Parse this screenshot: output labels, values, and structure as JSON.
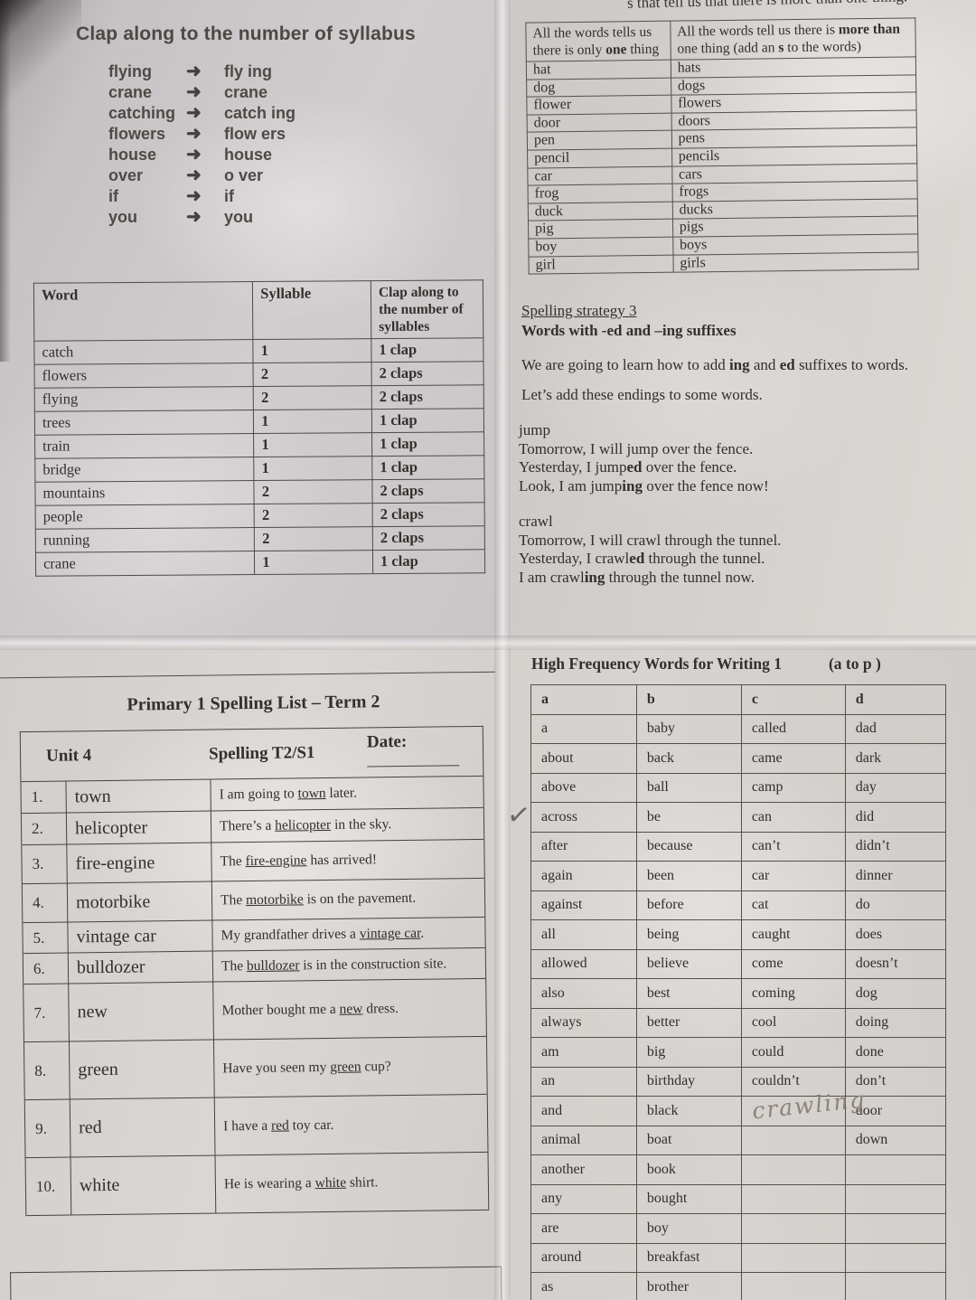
{
  "colors": {
    "ink": "#332f2b",
    "paper": "#d3d0cd",
    "pencil": "#8b8379"
  },
  "clap": {
    "title": "Clap along to the number of syllabus",
    "arrow": "➜",
    "pairs": [
      {
        "word": "flying",
        "split": "fly ing"
      },
      {
        "word": "crane",
        "split": "crane"
      },
      {
        "word": "catching",
        "split": "catch ing"
      },
      {
        "word": "flowers",
        "split": "flow ers"
      },
      {
        "word": "house",
        "split": "house"
      },
      {
        "word": "over",
        "split": "o ver"
      },
      {
        "word": "if",
        "split": "if"
      },
      {
        "word": "you",
        "split": "you"
      }
    ],
    "table": {
      "headers": [
        "Word",
        "Syllable",
        "Clap along to the number of syllables"
      ],
      "rows": [
        [
          "catch",
          "1",
          "1 clap"
        ],
        [
          "flowers",
          "2",
          "2 claps"
        ],
        [
          "flying",
          "2",
          "2 claps"
        ],
        [
          "trees",
          "1",
          "1 clap"
        ],
        [
          "train",
          "1",
          "1 clap"
        ],
        [
          "bridge",
          "1",
          "1 clap"
        ],
        [
          "mountains",
          "2",
          "2 claps"
        ],
        [
          "people",
          "2",
          "2 claps"
        ],
        [
          "running",
          "2",
          "2 claps"
        ],
        [
          "crane",
          "1",
          "1 clap"
        ]
      ]
    }
  },
  "plural": {
    "top_fragment": "s that tell us that there is more than one thing.",
    "header_left": {
      "pre": "All the words tells us there is only ",
      "b": "one",
      "post": " thing"
    },
    "header_right": {
      "pre": "All the words tell us there is ",
      "b1": "more than",
      "mid": " one thing (add an ",
      "b2": "s",
      "post": " to the words)"
    },
    "rows": [
      [
        "hat",
        "hats"
      ],
      [
        "dog",
        "dogs"
      ],
      [
        "flower",
        "flowers"
      ],
      [
        "door",
        "doors"
      ],
      [
        "pen",
        "pens"
      ],
      [
        "pencil",
        "pencils"
      ],
      [
        "car",
        "cars"
      ],
      [
        "frog",
        "frogs"
      ],
      [
        "duck",
        "ducks"
      ],
      [
        "pig",
        "pigs"
      ],
      [
        "boy",
        "boys"
      ],
      [
        "girl",
        "girls"
      ]
    ]
  },
  "strategy": {
    "heading": "Spelling strategy 3",
    "subheading": "Words with -ed and –ing suffixes",
    "intro": {
      "pre": "We are going to learn how to add  ",
      "b1": "ing",
      "mid": " and ",
      "b2": "ed",
      "post": " suffixes to words."
    },
    "lets": "Let’s add these endings to some words."
  },
  "jump": {
    "word": "jump",
    "l1": "Tomorrow, I will jump over the fence.",
    "l2": {
      "pre": "Yesterday, I jump",
      "b": "ed",
      "post": " over the fence."
    },
    "l3": {
      "pre": "Look, I am jump",
      "b": "ing",
      "post": " over the fence now!"
    }
  },
  "crawl": {
    "word": "crawl",
    "l1": "Tomorrow, I will crawl through the tunnel.",
    "l2": {
      "pre": "Yesterday, I crawl",
      "b": "ed",
      "post": " through the tunnel."
    },
    "l3": {
      "pre": "I am crawl",
      "b": "ing",
      "post": " through the tunnel now."
    }
  },
  "spelling": {
    "title": "Primary 1 Spelling List – Term 2",
    "unit": "Unit 4",
    "session": "Spelling T2/S1",
    "date_label": "Date:",
    "rows": [
      {
        "num": "1.",
        "word": "town",
        "pre": "I am going to ",
        "u": "town",
        "post": " later."
      },
      {
        "num": "2.",
        "word": "helicopter",
        "pre": "There’s a ",
        "u": "helicopter",
        "post": " in the sky."
      },
      {
        "num": "3.",
        "word": "fire-engine",
        "pre": "The ",
        "u": "fire-engine",
        "post": " has arrived!"
      },
      {
        "num": "4.",
        "word": "motorbike",
        "pre": "The ",
        "u": "motorbike",
        "post": " is on the pavement."
      },
      {
        "num": "5.",
        "word": "vintage car",
        "pre": "My grandfather drives a ",
        "u": "vintage car",
        "post": "."
      },
      {
        "num": "6.",
        "word": "bulldozer",
        "pre": "The ",
        "u": "bulldozer",
        "post": " is in the construction site."
      },
      {
        "num": "7.",
        "word": "new",
        "pre": "Mother bought me a ",
        "u": "new",
        "post": " dress."
      },
      {
        "num": "8.",
        "word": "green",
        "pre": "Have you seen my ",
        "u": "green",
        "post": " cup?"
      },
      {
        "num": "9.",
        "word": "red",
        "pre": "I have a ",
        "u": "red",
        "post": " toy car."
      },
      {
        "num": "10.",
        "word": "white",
        "pre": "He is wearing a ",
        "u": "white",
        "post": " shirt."
      }
    ]
  },
  "hfw": {
    "title": "High Frequency Words for Writing 1",
    "range": "(a to p )",
    "headers": [
      "a",
      "b",
      "c",
      "d"
    ],
    "rows": [
      [
        "a",
        "baby",
        "called",
        "dad"
      ],
      [
        "about",
        "back",
        "came",
        "dark"
      ],
      [
        "above",
        "ball",
        "camp",
        "day"
      ],
      [
        "across",
        "be",
        "can",
        "did"
      ],
      [
        "after",
        "because",
        "can’t",
        "didn’t"
      ],
      [
        "again",
        "been",
        "car",
        "dinner"
      ],
      [
        "against",
        "before",
        "cat",
        "do"
      ],
      [
        "all",
        "being",
        "caught",
        "does"
      ],
      [
        "allowed",
        "believe",
        "come",
        "doesn’t"
      ],
      [
        "also",
        "best",
        "coming",
        "dog"
      ],
      [
        "always",
        "better",
        "cool",
        "doing"
      ],
      [
        "am",
        "big",
        "could",
        "done"
      ],
      [
        "an",
        "birthday",
        "couldn’t",
        "don’t"
      ],
      [
        "and",
        "black",
        "",
        "door"
      ],
      [
        "animal",
        "boat",
        "",
        "down"
      ],
      [
        "another",
        "book",
        "",
        ""
      ],
      [
        "any",
        "bought",
        "",
        ""
      ],
      [
        "are",
        "boy",
        "",
        ""
      ],
      [
        "around",
        "breakfast",
        "",
        ""
      ],
      [
        "as",
        "brother",
        "",
        ""
      ]
    ]
  },
  "annotations": {
    "checkmark": "✓",
    "handwriting": "crawling"
  }
}
